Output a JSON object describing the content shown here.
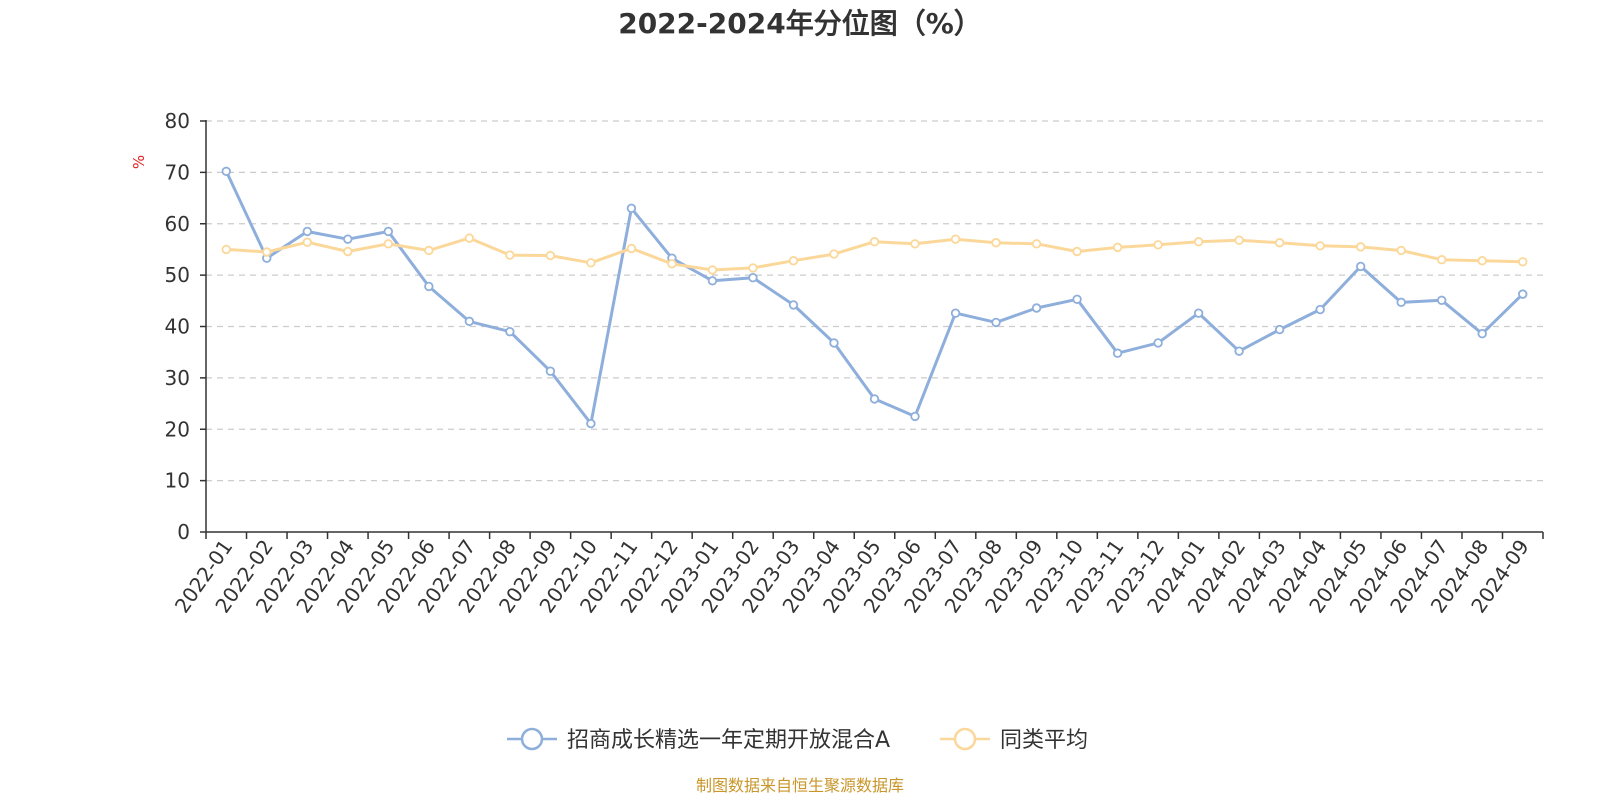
{
  "chart_data": {
    "type": "line",
    "title": "2022-2024年分位图（%）",
    "y_unit": "%",
    "ylim": [
      0,
      80
    ],
    "y_ticks": [
      0,
      10,
      20,
      30,
      40,
      50,
      60,
      70,
      80
    ],
    "grid": true,
    "legend_position": "bottom-center",
    "categories": [
      "2022-01",
      "2022-02",
      "2022-03",
      "2022-04",
      "2022-05",
      "2022-06",
      "2022-07",
      "2022-08",
      "2022-09",
      "2022-10",
      "2022-11",
      "2022-12",
      "2023-01",
      "2023-02",
      "2023-03",
      "2023-04",
      "2023-05",
      "2023-06",
      "2023-07",
      "2023-08",
      "2023-09",
      "2023-10",
      "2023-11",
      "2023-12",
      "2024-01",
      "2024-02",
      "2024-03",
      "2024-04",
      "2024-05",
      "2024-06",
      "2024-07",
      "2024-08",
      "2024-09"
    ],
    "series": [
      {
        "name": "招商成长精选一年定期开放混合A",
        "color": "#8eaedb",
        "values": [
          70.2,
          53.3,
          58.5,
          57.0,
          58.5,
          47.8,
          41.0,
          39.0,
          31.3,
          21.1,
          63.0,
          53.3,
          48.9,
          49.5,
          44.2,
          36.8,
          25.9,
          22.5,
          42.6,
          40.8,
          43.6,
          45.3,
          34.8,
          36.8,
          42.6,
          35.2,
          39.4,
          43.3,
          51.7,
          44.7,
          45.1,
          38.6,
          46.3
        ]
      },
      {
        "name": "同类平均",
        "color": "#fbd89a",
        "values": [
          55.0,
          54.5,
          56.4,
          54.6,
          56.1,
          54.8,
          57.2,
          53.9,
          53.8,
          52.4,
          55.2,
          52.2,
          51.0,
          51.4,
          52.8,
          54.1,
          56.5,
          56.1,
          57.0,
          56.3,
          56.1,
          54.6,
          55.4,
          55.9,
          56.5,
          56.8,
          56.3,
          55.7,
          55.5,
          54.8,
          53.0,
          52.8,
          52.6
        ]
      }
    ],
    "source": "制图数据来自恒生聚源数据库"
  }
}
